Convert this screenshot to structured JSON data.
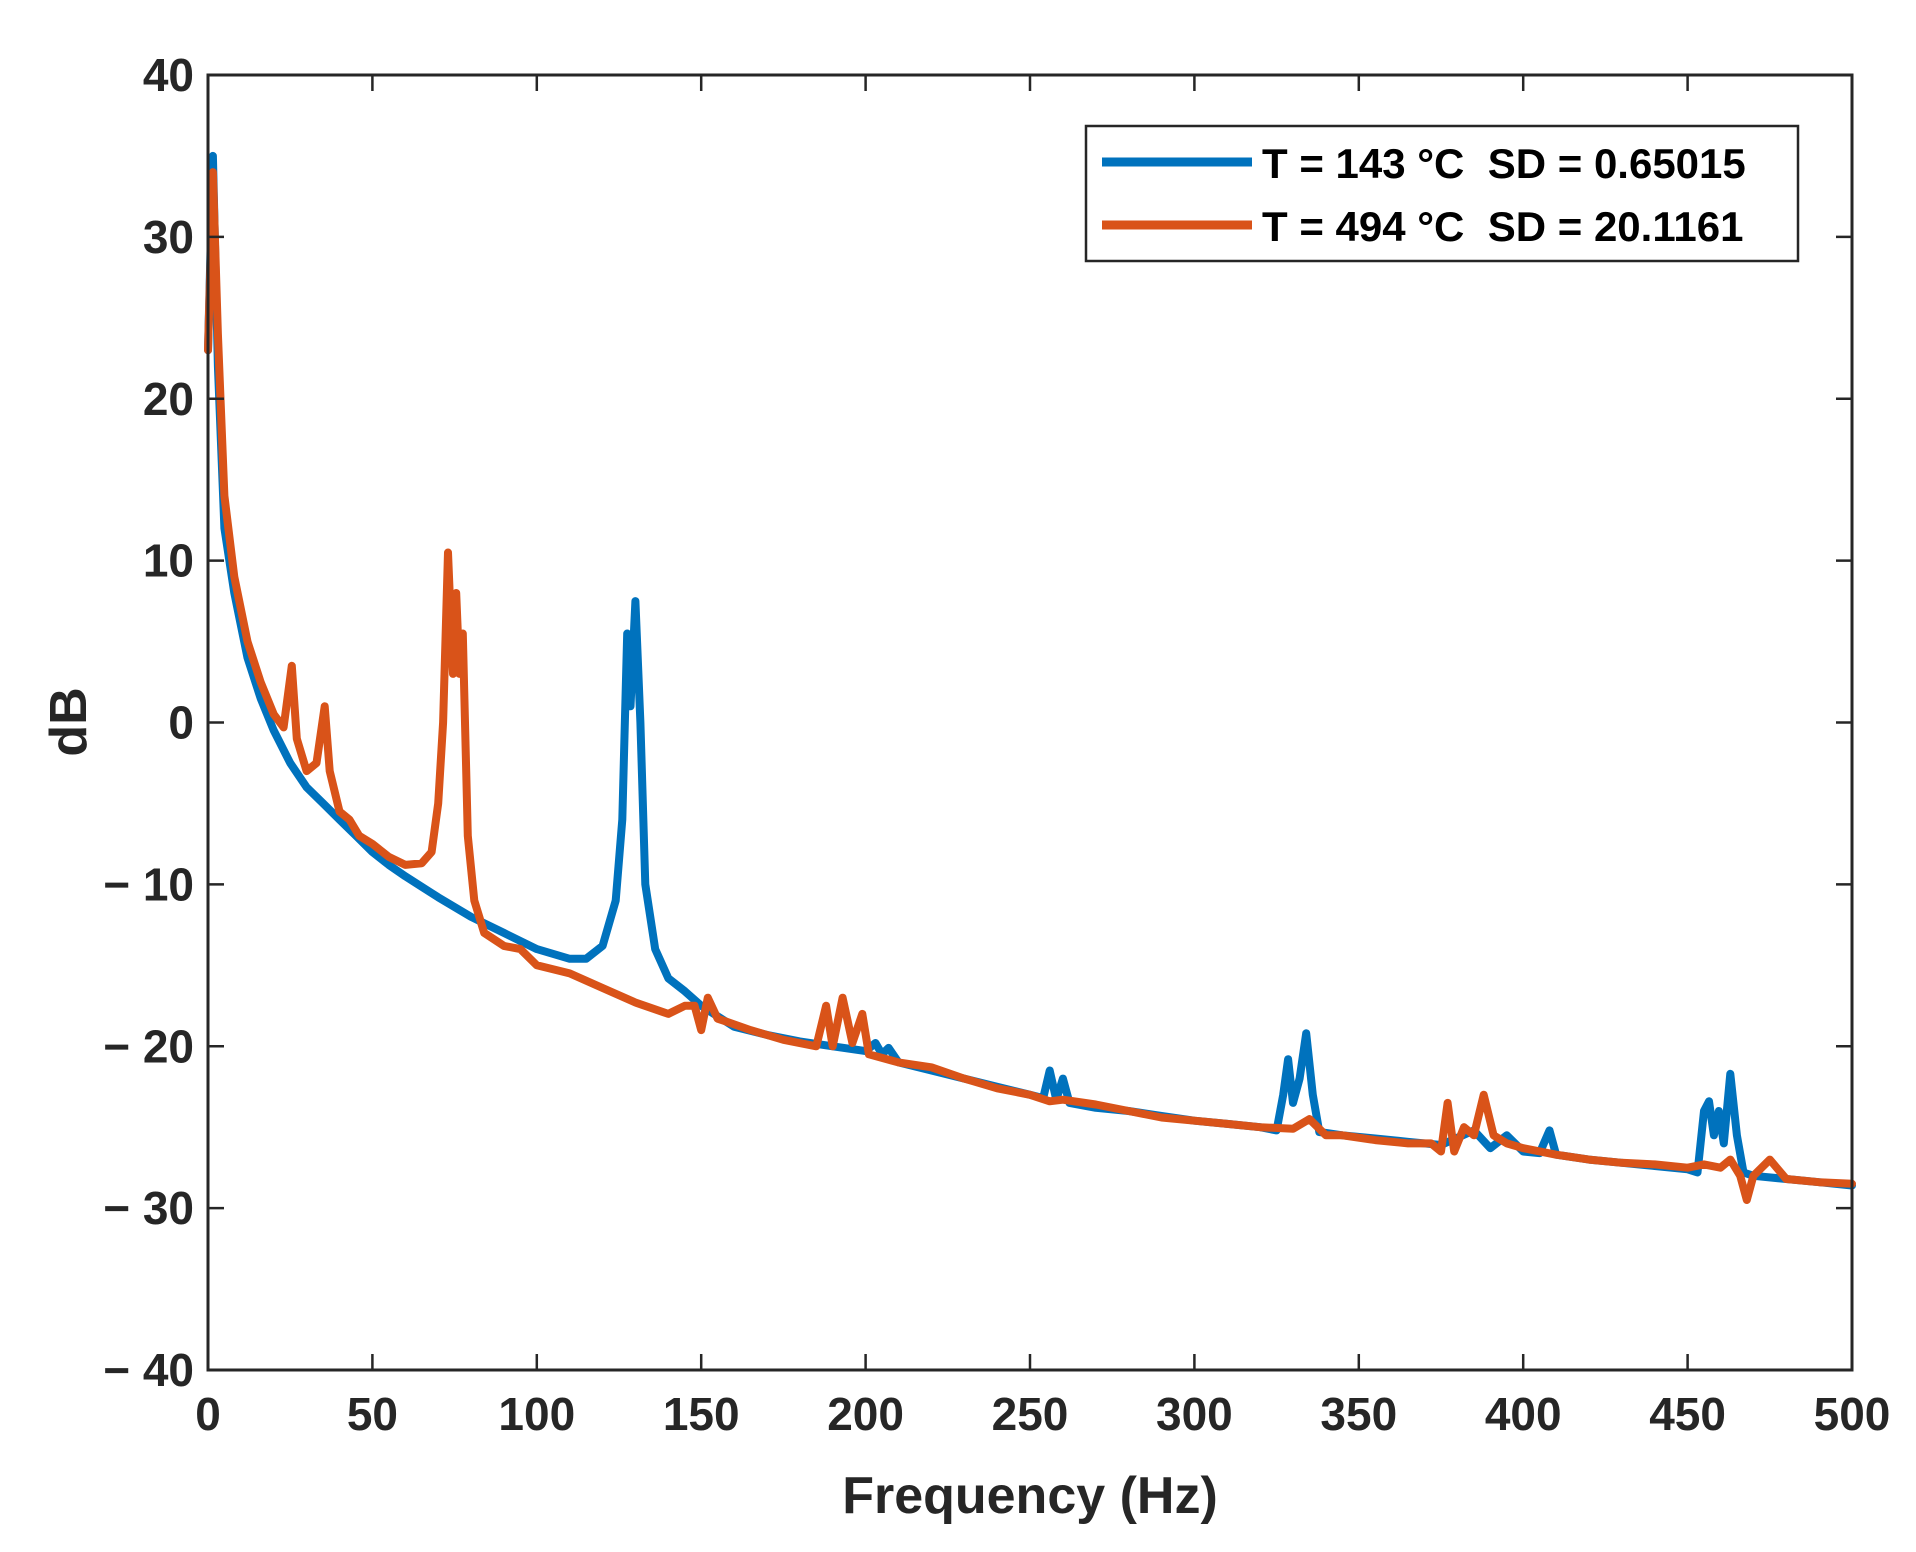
{
  "chart_data": {
    "type": "line",
    "title": "",
    "xlabel": "Frequency (Hz)",
    "ylabel": "dB",
    "xlim": [
      0,
      500
    ],
    "ylim": [
      -40,
      40
    ],
    "xticks": [
      0,
      50,
      100,
      150,
      200,
      250,
      300,
      350,
      400,
      450,
      500
    ],
    "yticks": [
      40,
      30,
      20,
      10,
      0,
      -10,
      -20,
      -30,
      -40
    ],
    "xtick_labels": [
      "0",
      "50",
      "100",
      "150",
      "200",
      "250",
      "300",
      "350",
      "400",
      "450",
      "500"
    ],
    "ytick_labels": [
      "40",
      "30",
      "20",
      "10",
      "0",
      "− 10",
      "− 20",
      "− 30",
      "− 40"
    ],
    "grid": false,
    "legend_position": "top-right",
    "series": [
      {
        "name": "T = 143 °C  SD = 0.65015",
        "color": "#0072BD",
        "points": [
          [
            0,
            23
          ],
          [
            1.5,
            35
          ],
          [
            3,
            22
          ],
          [
            5,
            12
          ],
          [
            8,
            8
          ],
          [
            12,
            4
          ],
          [
            16,
            1.5
          ],
          [
            20,
            -0.5
          ],
          [
            25,
            -2.5
          ],
          [
            30,
            -4
          ],
          [
            35,
            -5
          ],
          [
            40,
            -6
          ],
          [
            45,
            -7
          ],
          [
            50,
            -8
          ],
          [
            55,
            -8.8
          ],
          [
            60,
            -9.5
          ],
          [
            70,
            -10.8
          ],
          [
            80,
            -12
          ],
          [
            90,
            -13
          ],
          [
            100,
            -14
          ],
          [
            110,
            -14.6
          ],
          [
            115,
            -14.6
          ],
          [
            120,
            -13.8
          ],
          [
            124,
            -11
          ],
          [
            126,
            -6
          ],
          [
            127.5,
            5.5
          ],
          [
            128.5,
            1
          ],
          [
            130,
            7.5
          ],
          [
            131.5,
            0
          ],
          [
            133,
            -10
          ],
          [
            136,
            -14
          ],
          [
            140,
            -15.8
          ],
          [
            145,
            -16.6
          ],
          [
            150,
            -17.5
          ],
          [
            160,
            -18.8
          ],
          [
            170,
            -19.3
          ],
          [
            180,
            -19.7
          ],
          [
            190,
            -20
          ],
          [
            200,
            -20.3
          ],
          [
            203,
            -19.8
          ],
          [
            205,
            -20.5
          ],
          [
            207,
            -20.1
          ],
          [
            210,
            -21
          ],
          [
            220,
            -21.5
          ],
          [
            230,
            -22
          ],
          [
            240,
            -22.5
          ],
          [
            250,
            -23
          ],
          [
            254,
            -23.2
          ],
          [
            256,
            -21.5
          ],
          [
            258,
            -23.3
          ],
          [
            260,
            -22
          ],
          [
            262,
            -23.5
          ],
          [
            270,
            -23.8
          ],
          [
            280,
            -24
          ],
          [
            290,
            -24.3
          ],
          [
            300,
            -24.6
          ],
          [
            310,
            -24.8
          ],
          [
            320,
            -25
          ],
          [
            325,
            -25.2
          ],
          [
            327,
            -23
          ],
          [
            328.5,
            -20.8
          ],
          [
            330,
            -23.5
          ],
          [
            332,
            -22
          ],
          [
            334,
            -19.2
          ],
          [
            336,
            -23
          ],
          [
            338,
            -25.3
          ],
          [
            345,
            -25.5
          ],
          [
            355,
            -25.7
          ],
          [
            365,
            -25.9
          ],
          [
            375,
            -26.1
          ],
          [
            385,
            -25.2
          ],
          [
            390,
            -26.3
          ],
          [
            395,
            -25.5
          ],
          [
            400,
            -26.5
          ],
          [
            405,
            -26.6
          ],
          [
            408,
            -25.2
          ],
          [
            410,
            -26.7
          ],
          [
            420,
            -27
          ],
          [
            430,
            -27.2
          ],
          [
            440,
            -27.4
          ],
          [
            450,
            -27.6
          ],
          [
            453,
            -27.8
          ],
          [
            455,
            -24
          ],
          [
            456.5,
            -23.4
          ],
          [
            458,
            -25.5
          ],
          [
            459.5,
            -24
          ],
          [
            461,
            -26
          ],
          [
            463,
            -21.7
          ],
          [
            465,
            -25.5
          ],
          [
            467,
            -27.8
          ],
          [
            470,
            -28
          ],
          [
            480,
            -28.2
          ],
          [
            490,
            -28.4
          ],
          [
            500,
            -28.6
          ]
        ]
      },
      {
        "name": "T = 494 °C  SD = 20.1161",
        "color": "#D95319",
        "points": [
          [
            0,
            23
          ],
          [
            1.5,
            34
          ],
          [
            3,
            24
          ],
          [
            5,
            14
          ],
          [
            8,
            9
          ],
          [
            12,
            5
          ],
          [
            16,
            2.5
          ],
          [
            20,
            0.5
          ],
          [
            23,
            -0.3
          ],
          [
            25.5,
            3.5
          ],
          [
            27,
            -1
          ],
          [
            30,
            -3
          ],
          [
            33,
            -2.5
          ],
          [
            35.5,
            1
          ],
          [
            37,
            -3
          ],
          [
            40,
            -5.5
          ],
          [
            43,
            -6
          ],
          [
            46,
            -7
          ],
          [
            50,
            -7.5
          ],
          [
            55,
            -8.3
          ],
          [
            60,
            -8.8
          ],
          [
            65,
            -8.7
          ],
          [
            68,
            -8
          ],
          [
            70,
            -5
          ],
          [
            71.5,
            0
          ],
          [
            73,
            10.5
          ],
          [
            74.5,
            3
          ],
          [
            75.5,
            8
          ],
          [
            76.5,
            3
          ],
          [
            77.5,
            5.5
          ],
          [
            79,
            -7
          ],
          [
            81,
            -11
          ],
          [
            84,
            -13
          ],
          [
            90,
            -13.8
          ],
          [
            95,
            -14
          ],
          [
            100,
            -15
          ],
          [
            110,
            -15.5
          ],
          [
            120,
            -16.4
          ],
          [
            130,
            -17.3
          ],
          [
            140,
            -18
          ],
          [
            145,
            -17.5
          ],
          [
            148,
            -17.5
          ],
          [
            150,
            -19
          ],
          [
            152,
            -17
          ],
          [
            155,
            -18.3
          ],
          [
            158,
            -18.5
          ],
          [
            165,
            -19
          ],
          [
            175,
            -19.6
          ],
          [
            185,
            -20
          ],
          [
            188,
            -17.5
          ],
          [
            190,
            -20
          ],
          [
            193,
            -17
          ],
          [
            196,
            -19.8
          ],
          [
            199,
            -18
          ],
          [
            201,
            -20.5
          ],
          [
            210,
            -21
          ],
          [
            220,
            -21.3
          ],
          [
            230,
            -22
          ],
          [
            240,
            -22.6
          ],
          [
            250,
            -23
          ],
          [
            256,
            -23.4
          ],
          [
            260,
            -23.3
          ],
          [
            270,
            -23.6
          ],
          [
            280,
            -24
          ],
          [
            290,
            -24.4
          ],
          [
            300,
            -24.6
          ],
          [
            310,
            -24.8
          ],
          [
            320,
            -25
          ],
          [
            330,
            -25.1
          ],
          [
            335,
            -24.5
          ],
          [
            340,
            -25.5
          ],
          [
            345,
            -25.5
          ],
          [
            355,
            -25.8
          ],
          [
            365,
            -26
          ],
          [
            372,
            -26
          ],
          [
            375,
            -26.5
          ],
          [
            377,
            -23.5
          ],
          [
            379,
            -26.5
          ],
          [
            382,
            -25
          ],
          [
            385,
            -25.5
          ],
          [
            388,
            -23
          ],
          [
            391,
            -25.5
          ],
          [
            395,
            -26
          ],
          [
            400,
            -26.3
          ],
          [
            410,
            -26.7
          ],
          [
            420,
            -27
          ],
          [
            430,
            -27.2
          ],
          [
            440,
            -27.3
          ],
          [
            450,
            -27.5
          ],
          [
            455,
            -27.3
          ],
          [
            460,
            -27.5
          ],
          [
            463,
            -27
          ],
          [
            466,
            -28
          ],
          [
            468,
            -29.5
          ],
          [
            470,
            -28
          ],
          [
            475,
            -27
          ],
          [
            480,
            -28.2
          ],
          [
            490,
            -28.4
          ],
          [
            500,
            -28.5
          ]
        ]
      }
    ]
  }
}
